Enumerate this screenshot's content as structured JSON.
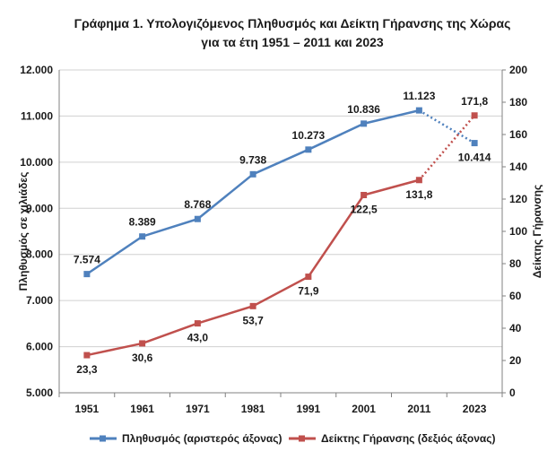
{
  "chart_data": {
    "type": "line",
    "title_line1": "Γράφημα 1. Υπολογιζόμενος Πληθυσμός και Δείκτη Γήρανσης της Χώρας",
    "title_line2": "για τα έτη 1951 – 2011 και 2023",
    "categories": [
      "1951",
      "1961",
      "1971",
      "1981",
      "1991",
      "2001",
      "2011",
      "2023"
    ],
    "ylabel_left": "Πληθυσμός σε χιλιάδες",
    "ylabel_right": "Δείκτης Γήρανσης",
    "ylim_left": [
      5000,
      12000
    ],
    "yticks_left": [
      5000,
      6000,
      7000,
      8000,
      9000,
      10000,
      11000,
      12000
    ],
    "yticklabels_left": [
      "5.000",
      "6.000",
      "7.000",
      "8.000",
      "9.000",
      "10.000",
      "11.000",
      "12.000"
    ],
    "ylim_right": [
      0,
      200
    ],
    "yticks_right": [
      0,
      20,
      40,
      60,
      80,
      100,
      120,
      140,
      160,
      180,
      200
    ],
    "yticklabels_right": [
      "0",
      "20",
      "40",
      "60",
      "80",
      "100",
      "120",
      "140",
      "160",
      "180",
      "200"
    ],
    "grid": "horizontal",
    "legend_position": "bottom",
    "series": [
      {
        "name": "Πληθυσμός (αριστερός άξονας)",
        "axis": "left",
        "color": "#4f81bd",
        "values": [
          7574,
          8389,
          8768,
          9738,
          10273,
          10836,
          11123,
          10414
        ],
        "labels": [
          "7.574",
          "8.389",
          "8.768",
          "9.738",
          "10.273",
          "10.836",
          "11.123",
          "10.414"
        ],
        "dashed_last_segment": true
      },
      {
        "name": "Δείκτης Γήρανσης (δεξιός άξονας)",
        "axis": "right",
        "color": "#c0504d",
        "values": [
          23.3,
          30.6,
          43.0,
          53.7,
          71.9,
          122.5,
          131.8,
          171.8
        ],
        "labels": [
          "23,3",
          "30,6",
          "43,0",
          "53,7",
          "71,9",
          "122,5",
          "131,8",
          "171,8"
        ],
        "dashed_last_segment": true
      }
    ]
  }
}
